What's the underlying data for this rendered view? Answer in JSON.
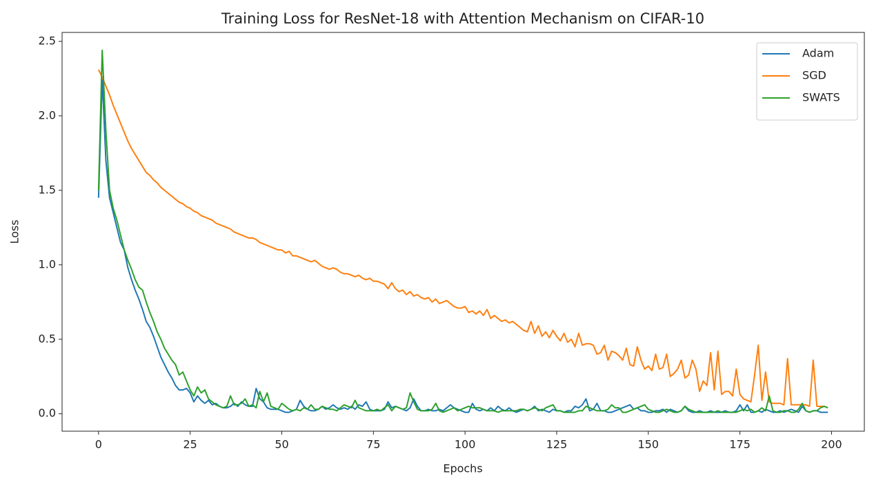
{
  "chart_data": {
    "type": "line",
    "title": "Training Loss for ResNet-18 with Attention Mechanism on CIFAR-10",
    "x_label": "Epochs",
    "y_label": "Loss",
    "x": [
      0,
      1,
      2,
      3,
      4,
      5,
      6,
      7,
      8,
      9,
      10,
      11,
      12,
      13,
      14,
      15,
      16,
      17,
      18,
      19,
      20,
      21,
      22,
      23,
      24,
      25,
      26,
      27,
      28,
      29,
      30,
      31,
      32,
      33,
      34,
      35,
      36,
      37,
      38,
      39,
      40,
      41,
      42,
      43,
      44,
      45,
      46,
      47,
      48,
      49,
      50,
      51,
      52,
      53,
      54,
      55,
      56,
      57,
      58,
      59,
      60,
      61,
      62,
      63,
      64,
      65,
      66,
      67,
      68,
      69,
      70,
      71,
      72,
      73,
      74,
      75,
      76,
      77,
      78,
      79,
      80,
      81,
      82,
      83,
      84,
      85,
      86,
      87,
      88,
      89,
      90,
      91,
      92,
      93,
      94,
      95,
      96,
      97,
      98,
      99,
      100,
      101,
      102,
      103,
      104,
      105,
      106,
      107,
      108,
      109,
      110,
      111,
      112,
      113,
      114,
      115,
      116,
      117,
      118,
      119,
      120,
      121,
      122,
      123,
      124,
      125,
      126,
      127,
      128,
      129,
      130,
      131,
      132,
      133,
      134,
      135,
      136,
      137,
      138,
      139,
      140,
      141,
      142,
      143,
      144,
      145,
      146,
      147,
      148,
      149,
      150,
      151,
      152,
      153,
      154,
      155,
      156,
      157,
      158,
      159,
      160,
      161,
      162,
      163,
      164,
      165,
      166,
      167,
      168,
      169,
      170,
      171,
      172,
      173,
      174,
      175,
      176,
      177,
      178,
      179,
      180,
      181,
      182,
      183,
      184,
      185,
      186,
      187,
      188,
      189,
      190,
      191,
      192,
      193,
      194,
      195,
      196,
      197,
      198,
      199
    ],
    "series": [
      {
        "name": "Adam",
        "color": "#1f77b4",
        "values": [
          1.45,
          2.25,
          1.7,
          1.45,
          1.35,
          1.25,
          1.15,
          1.1,
          0.98,
          0.9,
          0.83,
          0.77,
          0.7,
          0.62,
          0.58,
          0.52,
          0.45,
          0.38,
          0.33,
          0.28,
          0.24,
          0.19,
          0.16,
          0.16,
          0.17,
          0.14,
          0.08,
          0.12,
          0.09,
          0.07,
          0.09,
          0.06,
          0.07,
          0.05,
          0.04,
          0.04,
          0.05,
          0.07,
          0.05,
          0.08,
          0.06,
          0.05,
          0.05,
          0.17,
          0.1,
          0.08,
          0.04,
          0.03,
          0.03,
          0.03,
          0.02,
          0.01,
          0.01,
          0.02,
          0.03,
          0.09,
          0.05,
          0.03,
          0.02,
          0.02,
          0.03,
          0.05,
          0.03,
          0.04,
          0.06,
          0.04,
          0.03,
          0.04,
          0.03,
          0.05,
          0.03,
          0.06,
          0.05,
          0.08,
          0.03,
          0.02,
          0.02,
          0.02,
          0.03,
          0.08,
          0.04,
          0.05,
          0.04,
          0.03,
          0.02,
          0.04,
          0.1,
          0.05,
          0.02,
          0.02,
          0.03,
          0.02,
          0.02,
          0.03,
          0.02,
          0.04,
          0.06,
          0.04,
          0.03,
          0.02,
          0.01,
          0.01,
          0.07,
          0.03,
          0.02,
          0.03,
          0.02,
          0.04,
          0.02,
          0.05,
          0.03,
          0.02,
          0.04,
          0.02,
          0.01,
          0.02,
          0.03,
          0.02,
          0.03,
          0.05,
          0.02,
          0.03,
          0.02,
          0.01,
          0.03,
          0.02,
          0.02,
          0.01,
          0.02,
          0.02,
          0.05,
          0.04,
          0.06,
          0.1,
          0.02,
          0.03,
          0.07,
          0.02,
          0.02,
          0.01,
          0.01,
          0.02,
          0.03,
          0.04,
          0.05,
          0.06,
          0.03,
          0.04,
          0.02,
          0.02,
          0.01,
          0.01,
          0.02,
          0.02,
          0.03,
          0.01,
          0.03,
          0.02,
          0.01,
          0.02,
          0.05,
          0.02,
          0.01,
          0.01,
          0.02,
          0.01,
          0.01,
          0.02,
          0.01,
          0.01,
          0.01,
          0.02,
          0.01,
          0.01,
          0.02,
          0.06,
          0.02,
          0.06,
          0.01,
          0.01,
          0.02,
          0.01,
          0.03,
          0.02,
          0.01,
          0.01,
          0.02,
          0.01,
          0.02,
          0.03,
          0.02,
          0.01,
          0.05,
          0.02,
          0.01,
          0.02,
          0.02,
          0.01,
          0.01,
          0.01
        ]
      },
      {
        "name": "SGD",
        "color": "#ff7f0e",
        "values": [
          2.31,
          2.26,
          2.2,
          2.14,
          2.07,
          2.01,
          1.95,
          1.89,
          1.83,
          1.78,
          1.74,
          1.7,
          1.66,
          1.62,
          1.6,
          1.57,
          1.55,
          1.52,
          1.5,
          1.48,
          1.46,
          1.44,
          1.42,
          1.41,
          1.39,
          1.38,
          1.36,
          1.35,
          1.33,
          1.32,
          1.31,
          1.3,
          1.28,
          1.27,
          1.26,
          1.25,
          1.24,
          1.22,
          1.21,
          1.2,
          1.19,
          1.18,
          1.18,
          1.17,
          1.15,
          1.14,
          1.13,
          1.12,
          1.11,
          1.1,
          1.1,
          1.08,
          1.09,
          1.06,
          1.06,
          1.05,
          1.04,
          1.03,
          1.02,
          1.03,
          1.01,
          0.99,
          0.98,
          0.97,
          0.98,
          0.97,
          0.95,
          0.94,
          0.94,
          0.93,
          0.92,
          0.93,
          0.91,
          0.9,
          0.91,
          0.89,
          0.89,
          0.88,
          0.87,
          0.84,
          0.88,
          0.84,
          0.82,
          0.83,
          0.8,
          0.82,
          0.79,
          0.8,
          0.78,
          0.77,
          0.78,
          0.75,
          0.77,
          0.74,
          0.75,
          0.76,
          0.74,
          0.72,
          0.71,
          0.71,
          0.72,
          0.68,
          0.69,
          0.67,
          0.69,
          0.66,
          0.7,
          0.64,
          0.66,
          0.64,
          0.62,
          0.63,
          0.61,
          0.62,
          0.6,
          0.58,
          0.56,
          0.55,
          0.62,
          0.54,
          0.59,
          0.52,
          0.55,
          0.51,
          0.56,
          0.52,
          0.49,
          0.54,
          0.48,
          0.5,
          0.45,
          0.54,
          0.46,
          0.47,
          0.47,
          0.46,
          0.4,
          0.41,
          0.46,
          0.36,
          0.42,
          0.41,
          0.39,
          0.36,
          0.44,
          0.33,
          0.32,
          0.45,
          0.36,
          0.3,
          0.32,
          0.29,
          0.4,
          0.3,
          0.31,
          0.4,
          0.25,
          0.27,
          0.3,
          0.36,
          0.24,
          0.26,
          0.36,
          0.3,
          0.15,
          0.22,
          0.19,
          0.41,
          0.16,
          0.42,
          0.13,
          0.15,
          0.15,
          0.12,
          0.3,
          0.13,
          0.1,
          0.09,
          0.08,
          0.26,
          0.46,
          0.09,
          0.28,
          0.08,
          0.07,
          0.07,
          0.07,
          0.06,
          0.37,
          0.06,
          0.06,
          0.06,
          0.06,
          0.06,
          0.05,
          0.36,
          0.05,
          0.05,
          0.05,
          0.04
        ]
      },
      {
        "name": "SWATS",
        "color": "#2ca02c",
        "values": [
          1.5,
          2.44,
          1.9,
          1.5,
          1.38,
          1.3,
          1.2,
          1.1,
          1.03,
          0.97,
          0.9,
          0.85,
          0.83,
          0.75,
          0.68,
          0.62,
          0.55,
          0.5,
          0.44,
          0.4,
          0.36,
          0.33,
          0.26,
          0.28,
          0.22,
          0.16,
          0.12,
          0.18,
          0.14,
          0.16,
          0.1,
          0.08,
          0.06,
          0.05,
          0.04,
          0.05,
          0.12,
          0.06,
          0.06,
          0.07,
          0.1,
          0.05,
          0.06,
          0.04,
          0.15,
          0.08,
          0.14,
          0.05,
          0.04,
          0.03,
          0.07,
          0.05,
          0.03,
          0.02,
          0.03,
          0.02,
          0.04,
          0.03,
          0.06,
          0.03,
          0.03,
          0.05,
          0.04,
          0.03,
          0.03,
          0.02,
          0.04,
          0.06,
          0.05,
          0.04,
          0.09,
          0.04,
          0.03,
          0.02,
          0.02,
          0.02,
          0.03,
          0.02,
          0.04,
          0.06,
          0.02,
          0.05,
          0.04,
          0.03,
          0.04,
          0.14,
          0.08,
          0.03,
          0.02,
          0.02,
          0.02,
          0.03,
          0.07,
          0.02,
          0.01,
          0.02,
          0.03,
          0.04,
          0.02,
          0.03,
          0.04,
          0.05,
          0.04,
          0.04,
          0.04,
          0.03,
          0.02,
          0.02,
          0.02,
          0.01,
          0.02,
          0.02,
          0.02,
          0.02,
          0.02,
          0.03,
          0.03,
          0.02,
          0.03,
          0.04,
          0.03,
          0.02,
          0.04,
          0.05,
          0.06,
          0.02,
          0.02,
          0.01,
          0.01,
          0.01,
          0.01,
          0.02,
          0.02,
          0.05,
          0.04,
          0.03,
          0.02,
          0.02,
          0.02,
          0.03,
          0.06,
          0.04,
          0.04,
          0.01,
          0.01,
          0.02,
          0.03,
          0.04,
          0.05,
          0.06,
          0.03,
          0.02,
          0.01,
          0.01,
          0.02,
          0.03,
          0.02,
          0.01,
          0.01,
          0.02,
          0.05,
          0.03,
          0.02,
          0.01,
          0.01,
          0.01,
          0.01,
          0.01,
          0.01,
          0.02,
          0.01,
          0.01,
          0.01,
          0.01,
          0.01,
          0.02,
          0.03,
          0.02,
          0.03,
          0.01,
          0.02,
          0.04,
          0.02,
          0.12,
          0.02,
          0.01,
          0.01,
          0.02,
          0.02,
          0.01,
          0.01,
          0.03,
          0.07,
          0.02,
          0.01,
          0.02,
          0.02,
          0.04,
          0.05,
          0.04
        ]
      }
    ],
    "xlim": [
      -9.95,
      208.95
    ],
    "xticks": [
      0,
      25,
      50,
      75,
      100,
      125,
      150,
      175,
      200
    ],
    "ylim": [
      -0.117,
      2.56
    ],
    "yticks": [
      {
        "value": 0,
        "label": "0.0"
      },
      {
        "value": 0.5,
        "label": "0.5"
      },
      {
        "value": 1,
        "label": "1.0"
      },
      {
        "value": 1.5,
        "label": "1.5"
      },
      {
        "value": 2,
        "label": "2.0"
      },
      {
        "value": 2.5,
        "label": "2.5"
      }
    ],
    "grid": false,
    "legend": "upper right"
  }
}
